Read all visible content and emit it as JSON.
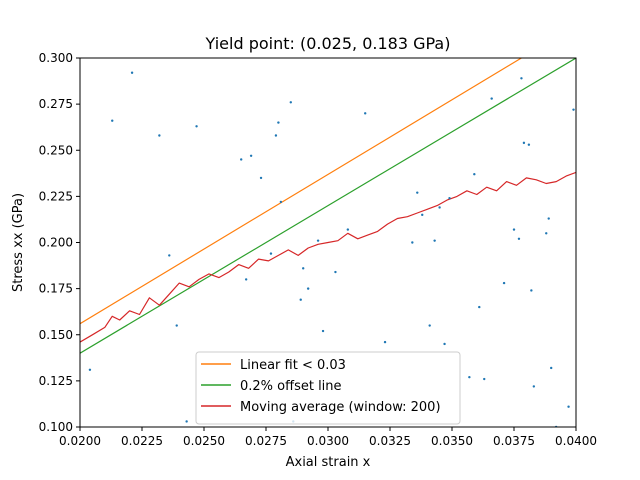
{
  "chart_data": {
    "type": "line",
    "title": "Yield point: (0.025, 0.183 GPa)",
    "xlabel": "Axial strain x",
    "ylabel": "Stress xx (GPa)",
    "xlim": [
      0.02,
      0.04
    ],
    "ylim": [
      0.1,
      0.3
    ],
    "x_ticks": [
      "0.0200",
      "0.0225",
      "0.0250",
      "0.0275",
      "0.0300",
      "0.0325",
      "0.0350",
      "0.0375",
      "0.0400"
    ],
    "y_ticks": [
      "0.100",
      "0.125",
      "0.150",
      "0.175",
      "0.200",
      "0.225",
      "0.250",
      "0.275",
      "0.300"
    ],
    "grid": false,
    "legend_position": "lower-center",
    "series": [
      {
        "name": "Linear fit < 0.03",
        "kind": "line",
        "color": "#ff7f0e",
        "x": [
          0.02,
          0.0378
        ],
        "y": [
          0.156,
          0.3
        ]
      },
      {
        "name": "0.2% offset line",
        "kind": "line",
        "color": "#2ca02c",
        "x": [
          0.02,
          0.04
        ],
        "y": [
          0.14,
          0.3
        ]
      },
      {
        "name": "Moving average (window: 200)",
        "kind": "line",
        "color": "#d62728",
        "x": [
          0.02,
          0.0205,
          0.021,
          0.0213,
          0.0216,
          0.022,
          0.0224,
          0.0228,
          0.0232,
          0.0236,
          0.024,
          0.0244,
          0.0248,
          0.0252,
          0.0256,
          0.026,
          0.0264,
          0.0268,
          0.0272,
          0.0276,
          0.028,
          0.0284,
          0.0288,
          0.0292,
          0.0296,
          0.03,
          0.0304,
          0.0308,
          0.0312,
          0.0316,
          0.032,
          0.0324,
          0.0328,
          0.0332,
          0.0336,
          0.034,
          0.0344,
          0.0348,
          0.0352,
          0.0356,
          0.036,
          0.0364,
          0.0368,
          0.0372,
          0.0376,
          0.038,
          0.0384,
          0.0388,
          0.0392,
          0.0396,
          0.04
        ],
        "y": [
          0.146,
          0.15,
          0.154,
          0.16,
          0.158,
          0.163,
          0.161,
          0.17,
          0.166,
          0.172,
          0.178,
          0.176,
          0.18,
          0.183,
          0.181,
          0.184,
          0.188,
          0.186,
          0.191,
          0.19,
          0.193,
          0.196,
          0.193,
          0.197,
          0.199,
          0.2,
          0.201,
          0.205,
          0.202,
          0.204,
          0.206,
          0.21,
          0.213,
          0.214,
          0.216,
          0.218,
          0.22,
          0.223,
          0.225,
          0.228,
          0.226,
          0.23,
          0.228,
          0.233,
          0.231,
          0.235,
          0.234,
          0.232,
          0.233,
          0.236,
          0.238
        ]
      },
      {
        "kind": "scatter",
        "color": "#1f77b4",
        "x": [
          0.0204,
          0.0213,
          0.0221,
          0.0232,
          0.0236,
          0.0239,
          0.0243,
          0.0247,
          0.0265,
          0.0267,
          0.0269,
          0.0273,
          0.0277,
          0.0279,
          0.028,
          0.0281,
          0.0285,
          0.0286,
          0.0289,
          0.029,
          0.0292,
          0.0296,
          0.0298,
          0.0303,
          0.0308,
          0.0315,
          0.0323,
          0.0334,
          0.0336,
          0.0338,
          0.0341,
          0.0343,
          0.0345,
          0.0347,
          0.0349,
          0.0357,
          0.0359,
          0.0361,
          0.0363,
          0.0366,
          0.0371,
          0.0375,
          0.0377,
          0.0378,
          0.0379,
          0.0381,
          0.0382,
          0.0383,
          0.0388,
          0.0389,
          0.039,
          0.0392,
          0.0397,
          0.0399
        ],
        "y": [
          0.131,
          0.266,
          0.292,
          0.258,
          0.193,
          0.155,
          0.103,
          0.263,
          0.245,
          0.18,
          0.247,
          0.235,
          0.194,
          0.258,
          0.265,
          0.222,
          0.276,
          0.103,
          0.169,
          0.186,
          0.175,
          0.201,
          0.152,
          0.184,
          0.207,
          0.27,
          0.146,
          0.2,
          0.227,
          0.215,
          0.155,
          0.201,
          0.219,
          0.145,
          0.224,
          0.127,
          0.237,
          0.165,
          0.126,
          0.278,
          0.178,
          0.207,
          0.202,
          0.289,
          0.254,
          0.253,
          0.174,
          0.122,
          0.205,
          0.213,
          0.132,
          0.1,
          0.111,
          0.272
        ]
      }
    ]
  }
}
